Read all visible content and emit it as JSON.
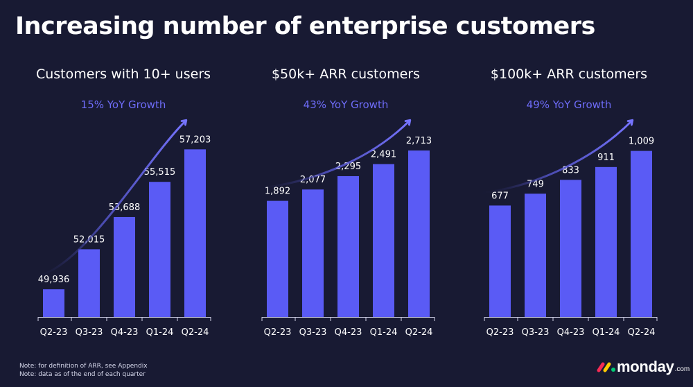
{
  "title": "Increasing number of enterprise customers",
  "colors": {
    "background": "#181a33",
    "bar": "#5a5bf5",
    "accent": "#6e6cf8",
    "text": "#ffffff"
  },
  "chart_data": [
    {
      "type": "bar",
      "title": "Customers with 10+ users",
      "subtitle": "15% YoY Growth",
      "categories": [
        "Q2‑23",
        "Q3‑23",
        "Q4‑23",
        "Q1‑24",
        "Q2‑24"
      ],
      "values": [
        49936,
        52015,
        53688,
        55515,
        57203
      ],
      "value_labels": [
        "49,936",
        "52,015",
        "53,688",
        "55,515",
        "57,203"
      ],
      "ylim": [
        48500,
        57900
      ],
      "grid": false,
      "trend_arrow": true
    },
    {
      "type": "bar",
      "title": "$50k+ ARR customers",
      "subtitle": "43% YoY Growth",
      "categories": [
        "Q2‑23",
        "Q3‑23",
        "Q4‑23",
        "Q1‑24",
        "Q2‑24"
      ],
      "values": [
        1892,
        2077,
        2295,
        2491,
        2713
      ],
      "value_labels": [
        "1,892",
        "2,077",
        "2,295",
        "2,491",
        "2,713"
      ],
      "ylim": [
        0,
        2950
      ],
      "grid": false,
      "trend_arrow": true
    },
    {
      "type": "bar",
      "title": "$100k+ ARR customers",
      "subtitle": "49% YoY Growth",
      "categories": [
        "Q2‑23",
        "Q3‑23",
        "Q4‑23",
        "Q1‑24",
        "Q2‑24"
      ],
      "values": [
        677,
        749,
        833,
        911,
        1009
      ],
      "value_labels": [
        "677",
        "749",
        "833",
        "911",
        "1,009"
      ],
      "ylim": [
        0,
        1100
      ],
      "grid": false,
      "trend_arrow": true
    }
  ],
  "notes": [
    "Note: for definition of ARR, see Appendix",
    "Note: data as of the end of each quarter"
  ],
  "logo": {
    "word": "monday",
    "suffix": ".com"
  }
}
